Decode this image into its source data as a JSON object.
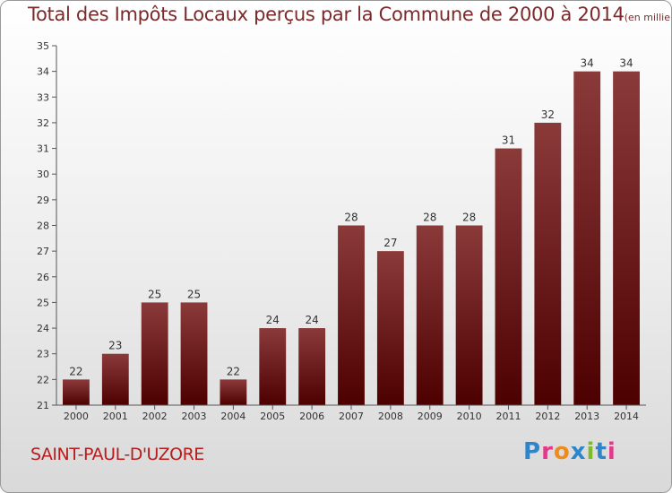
{
  "header": {
    "title": "Total des Impôts Locaux perçus par la Commune de 2000 à 2014",
    "unit": "(en milliers d'€)"
  },
  "footer": {
    "commune": "SAINT-PAUL-D'UZORE",
    "brand": "Proxiti"
  },
  "colors": {
    "bar_top": "#8b3a3a",
    "bar_bottom": "#4d0000",
    "axis": "#555555",
    "title": "#7a2a2a"
  },
  "chart_data": {
    "type": "bar",
    "title": "Total des Impôts Locaux perçus par la Commune de 2000 à 2014",
    "ylabel": "en milliers d'€",
    "xlabel": "",
    "categories": [
      "2000",
      "2001",
      "2002",
      "2003",
      "2004",
      "2005",
      "2006",
      "2007",
      "2008",
      "2009",
      "2010",
      "2011",
      "2012",
      "2013",
      "2014"
    ],
    "values": [
      22,
      23,
      25,
      25,
      22,
      24,
      24,
      28,
      27,
      28,
      28,
      31,
      32,
      34,
      34
    ],
    "ylim": [
      21,
      35
    ],
    "yticks": [
      21,
      22,
      23,
      24,
      25,
      26,
      27,
      28,
      29,
      30,
      31,
      32,
      33,
      34,
      35
    ],
    "grid": false
  }
}
